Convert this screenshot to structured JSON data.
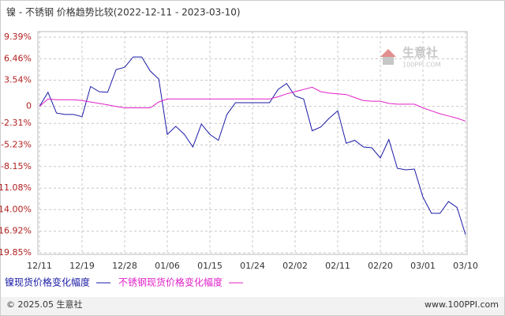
{
  "chart_data": {
    "type": "line",
    "title": "镍 - 不锈钢 价格趋势比较(2022-12-11 - 2023-03-10)",
    "categories": [
      "12/11",
      null,
      null,
      null,
      null,
      "12/19",
      null,
      null,
      null,
      null,
      "12/28",
      null,
      null,
      null,
      null,
      "01/06",
      null,
      null,
      null,
      null,
      "01/15",
      null,
      null,
      null,
      null,
      "01/24",
      null,
      null,
      null,
      null,
      "02/02",
      null,
      null,
      null,
      null,
      "02/11",
      null,
      null,
      null,
      null,
      "02/20",
      null,
      null,
      null,
      null,
      "03/01",
      null,
      null,
      null,
      null,
      "03/10"
    ],
    "series": [
      {
        "name": "镍现货价格变化幅度",
        "color": "#1a1aa6",
        "values": [
          0,
          1.9,
          -0.9,
          -1.1,
          -1.1,
          -1.4,
          2.7,
          2.0,
          1.9,
          5.0,
          5.3,
          6.7,
          6.7,
          4.8,
          3.7,
          -3.8,
          -2.7,
          -3.8,
          -5.5,
          -2.4,
          -3.8,
          -4.6,
          -1.1,
          0.5,
          0.5,
          0.5,
          0.5,
          0.5,
          2.3,
          3.1,
          1.4,
          1.0,
          -3.3,
          -2.8,
          -1.6,
          -0.6,
          -5.0,
          -4.6,
          -5.5,
          -5.6,
          -7.0,
          -4.5,
          -8.4,
          -8.6,
          -8.5,
          -12.3,
          -14.5,
          -14.5,
          -12.9,
          -13.7,
          -17.4
        ]
      },
      {
        "name": "不锈钢现货价格变化幅度",
        "color": "#e020c8",
        "values": [
          0,
          1.0,
          0.9,
          0.9,
          0.9,
          0.8,
          0.6,
          0.4,
          0.2,
          0.0,
          -0.2,
          -0.2,
          -0.2,
          -0.2,
          0.6,
          1.0,
          1.0,
          1.0,
          1.0,
          1.0,
          1.0,
          1.0,
          1.0,
          1.0,
          1.0,
          1.0,
          1.0,
          1.0,
          1.3,
          1.7,
          2.0,
          2.3,
          2.6,
          2.0,
          1.8,
          1.7,
          1.6,
          1.2,
          0.8,
          0.7,
          0.7,
          0.4,
          0.3,
          0.3,
          0.3,
          -0.2,
          -0.6,
          -1.0,
          -1.3,
          -1.6,
          -2.0
        ]
      }
    ],
    "ylim": [
      -19.85,
      9.39
    ],
    "yticks": [
      {
        "value": 9.39,
        "label": "9.39%"
      },
      {
        "value": 6.46,
        "label": "6.46%"
      },
      {
        "value": 3.54,
        "label": "3.54%"
      },
      0,
      {
        "value": -2.31,
        "label": "-2.31%"
      },
      {
        "value": -5.23,
        "label": "-5.23%"
      },
      {
        "value": -8.15,
        "label": "-8.15%"
      },
      {
        "value": -11.08,
        "label": "-11.08%"
      },
      {
        "value": -14.0,
        "label": "-14.00%"
      },
      {
        "value": -16.92,
        "label": "-16.92%"
      },
      {
        "value": -19.85,
        "label": "-19.85%"
      }
    ],
    "grid": true,
    "watermark": {
      "name": "生意社",
      "site": "100PPI.COM"
    }
  },
  "footer": {
    "left": "© 2025.05 生意社",
    "right": "www.100PPI.com"
  }
}
